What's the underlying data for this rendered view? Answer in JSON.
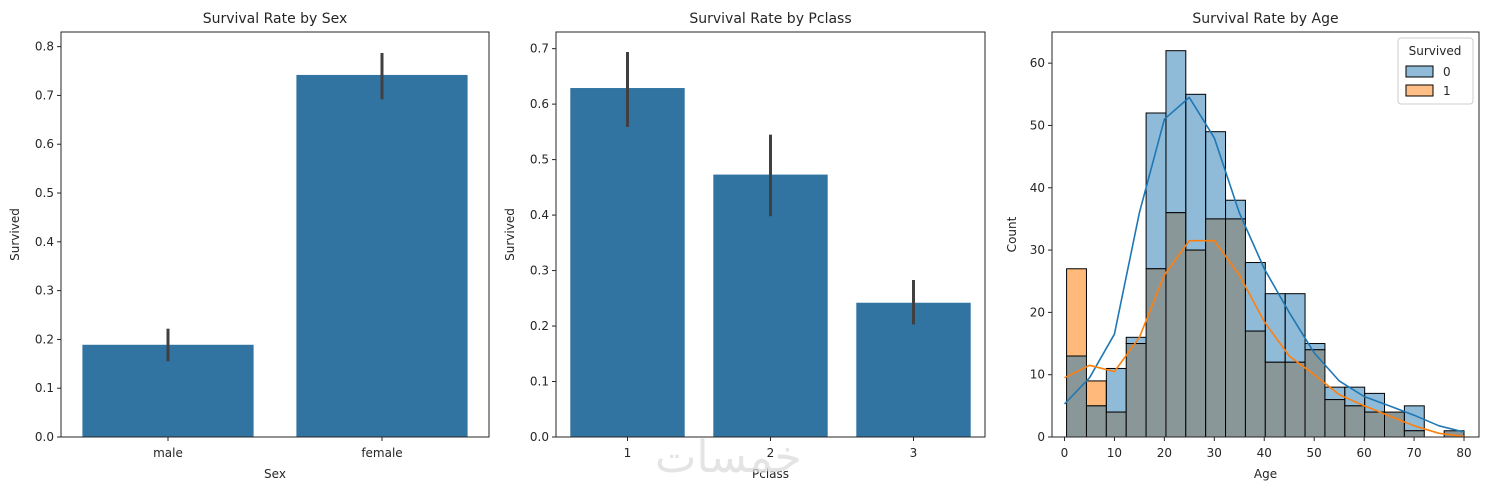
{
  "watermark": "خمسات",
  "colors": {
    "bar": "#3274a1",
    "survived0": "#1f77b4",
    "survived1": "#ff7f0e",
    "errbar": "#404040",
    "overlap": "#8a9799"
  },
  "chart_data": [
    {
      "type": "bar",
      "title": "Survival Rate by Sex",
      "xlabel": "Sex",
      "ylabel": "Survived",
      "categories": [
        "male",
        "female"
      ],
      "values": [
        0.189,
        0.742
      ],
      "ci": [
        [
          0.155,
          0.222
        ],
        [
          0.692,
          0.787
        ]
      ],
      "ylim": [
        0,
        0.83
      ],
      "yticks": [
        0.0,
        0.1,
        0.2,
        0.3,
        0.4,
        0.5,
        0.6,
        0.7,
        0.8
      ]
    },
    {
      "type": "bar",
      "title": "Survival Rate by Pclass",
      "xlabel": "Pclass",
      "ylabel": "Survived",
      "categories": [
        "1",
        "2",
        "3"
      ],
      "values": [
        0.629,
        0.473,
        0.242
      ],
      "ci": [
        [
          0.559,
          0.694
        ],
        [
          0.398,
          0.545
        ],
        [
          0.203,
          0.283
        ]
      ],
      "ylim": [
        0,
        0.73
      ],
      "yticks": [
        0.0,
        0.1,
        0.2,
        0.3,
        0.4,
        0.5,
        0.6,
        0.7
      ]
    },
    {
      "type": "histogram",
      "title": "Survival Rate by Age",
      "xlabel": "Age",
      "ylabel": "Count",
      "legend_title": "Survived",
      "legend_position": "top-right",
      "bin_edges": [
        0.42,
        4.4,
        8.38,
        12.36,
        16.34,
        20.32,
        24.29,
        28.27,
        32.25,
        36.23,
        40.21,
        44.19,
        48.17,
        52.15,
        56.13,
        60.11,
        64.08,
        68.06,
        72.04,
        76.02,
        80.0
      ],
      "series": [
        {
          "name": "0",
          "values": [
            13,
            5,
            11,
            16,
            52,
            62,
            55,
            49,
            38,
            28,
            23,
            23,
            15,
            8,
            8,
            7,
            4,
            5,
            0,
            1
          ]
        },
        {
          "name": "1",
          "values": [
            27,
            9,
            4,
            15,
            27,
            36,
            30,
            35,
            35,
            17,
            12,
            12,
            14,
            6,
            5,
            4,
            4,
            1,
            0,
            1
          ]
        }
      ],
      "kde": [
        {
          "name": "0",
          "x": [
            0,
            5,
            10,
            15,
            20,
            25,
            30,
            35,
            40,
            45,
            50,
            55,
            60,
            65,
            70,
            75,
            80
          ],
          "y": [
            5.3,
            9.5,
            16.5,
            36,
            51,
            54.5,
            48,
            36,
            27,
            20,
            13.5,
            9,
            6.5,
            5,
            3.5,
            1.8,
            0.8
          ]
        },
        {
          "name": "1",
          "x": [
            0,
            5,
            10,
            15,
            20,
            25,
            30,
            35,
            40,
            45,
            50,
            55,
            60,
            65,
            70,
            75,
            80
          ],
          "y": [
            9.5,
            11.5,
            10.5,
            16,
            26,
            31.5,
            31.5,
            26,
            18.5,
            13,
            10,
            6.8,
            5,
            3.4,
            1.8,
            0.6,
            0.1
          ]
        }
      ],
      "xlim": [
        -2.5,
        83
      ],
      "ylim": [
        0,
        65
      ],
      "xticks": [
        0,
        10,
        20,
        30,
        40,
        50,
        60,
        70,
        80
      ],
      "yticks": [
        0,
        10,
        20,
        30,
        40,
        50,
        60
      ]
    }
  ]
}
